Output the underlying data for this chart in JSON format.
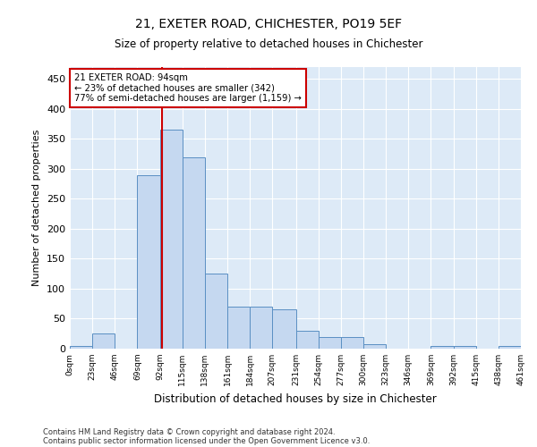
{
  "title1": "21, EXETER ROAD, CHICHESTER, PO19 5EF",
  "title2": "Size of property relative to detached houses in Chichester",
  "xlabel": "Distribution of detached houses by size in Chichester",
  "ylabel": "Number of detached properties",
  "annotation_line1": "21 EXETER ROAD: 94sqm",
  "annotation_line2": "← 23% of detached houses are smaller (342)",
  "annotation_line3": "77% of semi-detached houses are larger (1,159) →",
  "property_size": 94,
  "bin_edges": [
    0,
    23,
    46,
    69,
    92,
    115,
    138,
    161,
    184,
    207,
    231,
    254,
    277,
    300,
    323,
    346,
    369,
    392,
    415,
    438,
    461
  ],
  "bar_heights": [
    5,
    25,
    0,
    290,
    365,
    320,
    125,
    70,
    70,
    65,
    30,
    20,
    20,
    8,
    0,
    0,
    5,
    5,
    0,
    5
  ],
  "bar_color": "#c5d8f0",
  "bar_edge_color": "#5a8fc3",
  "vline_color": "#cc0000",
  "vline_x": 94,
  "annotation_box_color": "#cc0000",
  "background_color": "#ffffff",
  "plot_bg_color": "#ddeaf7",
  "ylim": [
    0,
    470
  ],
  "yticks": [
    0,
    50,
    100,
    150,
    200,
    250,
    300,
    350,
    400,
    450
  ],
  "footer1": "Contains HM Land Registry data © Crown copyright and database right 2024.",
  "footer2": "Contains public sector information licensed under the Open Government Licence v3.0."
}
